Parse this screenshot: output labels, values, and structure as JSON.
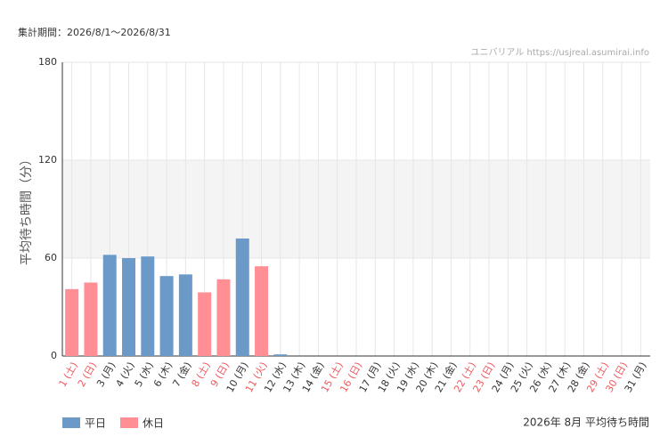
{
  "chart_data": {
    "type": "bar",
    "period": "集計期間：2026/8/1～2026/8/31",
    "watermark": "ユニバリアル  https://usjreal.asumirai.info",
    "ylabel": "平均待ち時間（分）",
    "caption": "2026年 8月 平均待ち時間",
    "categories": [
      "1 (土)",
      "2 (日)",
      "3 (月)",
      "4 (火)",
      "5 (水)",
      "6 (木)",
      "7 (金)",
      "8 (土)",
      "9 (日)",
      "10 (月)",
      "11 (火)",
      "12 (水)",
      "13 (木)",
      "14 (金)",
      "15 (土)",
      "16 (日)",
      "17 (月)",
      "18 (火)",
      "19 (水)",
      "20 (木)",
      "21 (金)",
      "22 (土)",
      "23 (日)",
      "24 (月)",
      "25 (火)",
      "26 (水)",
      "27 (木)",
      "28 (金)",
      "29 (土)",
      "30 (日)",
      "31 (月)"
    ],
    "category_colors": [
      "#f0585e",
      "#f0585e",
      "#333333",
      "#333333",
      "#333333",
      "#333333",
      "#333333",
      "#f0585e",
      "#f0585e",
      "#333333",
      "#f0585e",
      "#333333",
      "#333333",
      "#333333",
      "#f0585e",
      "#f0585e",
      "#333333",
      "#333333",
      "#333333",
      "#333333",
      "#333333",
      "#f0585e",
      "#f0585e",
      "#333333",
      "#333333",
      "#333333",
      "#333333",
      "#333333",
      "#f0585e",
      "#f0585e",
      "#333333"
    ],
    "series": [
      {
        "name": "平日",
        "color": "#6b9ac8",
        "values": [
          null,
          null,
          62,
          60,
          61,
          49,
          50,
          null,
          null,
          72,
          null,
          1,
          null,
          null,
          null,
          null,
          null,
          null,
          null,
          null,
          null,
          null,
          null,
          null,
          null,
          null,
          null,
          null,
          null,
          null,
          null
        ]
      },
      {
        "name": "休日",
        "color": "#ff8f94",
        "values": [
          41,
          45,
          null,
          null,
          null,
          null,
          null,
          39,
          47,
          null,
          55,
          null,
          null,
          null,
          null,
          null,
          null,
          null,
          null,
          null,
          null,
          null,
          null,
          null,
          null,
          null,
          null,
          null,
          null,
          null,
          null
        ]
      }
    ],
    "ylim": [
      0,
      180
    ],
    "yticks": [
      0,
      60,
      120,
      180
    ],
    "shaded_band": [
      60,
      120
    ],
    "grid": true
  }
}
